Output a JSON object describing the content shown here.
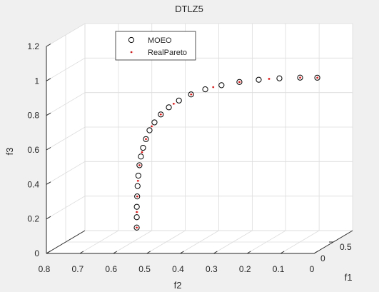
{
  "chart_data": {
    "type": "scatter",
    "dimensions": 3,
    "title": "DTLZ5",
    "xlabel": "f1",
    "ylabel": "f2",
    "zlabel": "f3",
    "xlim": [
      0,
      1
    ],
    "ylim": [
      0,
      0.8
    ],
    "zlim": [
      0,
      1.2
    ],
    "x_ticks": [
      "0",
      "0.5"
    ],
    "y_ticks": [
      "0.8",
      "0.7",
      "0.6",
      "0.5",
      "0.4",
      "0.3",
      "0.2",
      "0.1",
      "0"
    ],
    "z_ticks": [
      "0",
      "0.2",
      "0.4",
      "0.6",
      "0.8",
      "1",
      "1.2"
    ],
    "grid": true,
    "legend_position": "top-left",
    "series": [
      {
        "name": "MOEO",
        "marker": "open-circle",
        "color": "#000000",
        "points": [
          [
            0.0,
            0.53,
            0.15
          ],
          [
            0.001,
            0.53,
            0.21
          ],
          [
            0.002,
            0.53,
            0.27
          ],
          [
            0.003,
            0.529,
            0.33
          ],
          [
            0.005,
            0.528,
            0.39
          ],
          [
            0.007,
            0.526,
            0.45
          ],
          [
            0.01,
            0.523,
            0.51
          ],
          [
            0.013,
            0.519,
            0.56
          ],
          [
            0.017,
            0.513,
            0.61
          ],
          [
            0.022,
            0.505,
            0.66
          ],
          [
            0.028,
            0.495,
            0.71
          ],
          [
            0.035,
            0.481,
            0.755
          ],
          [
            0.043,
            0.463,
            0.8
          ],
          [
            0.052,
            0.44,
            0.84
          ],
          [
            0.062,
            0.411,
            0.878
          ],
          [
            0.073,
            0.376,
            0.912
          ],
          [
            0.085,
            0.335,
            0.94
          ],
          [
            0.098,
            0.288,
            0.962
          ],
          [
            0.112,
            0.236,
            0.979
          ],
          [
            0.127,
            0.18,
            0.99
          ],
          [
            0.143,
            0.12,
            0.996
          ],
          [
            0.159,
            0.06,
            0.998
          ],
          [
            0.171,
            0.01,
            0.996
          ]
        ]
      },
      {
        "name": "RealPareto",
        "marker": "point",
        "color": "#ff0000",
        "points": [
          [
            0.0,
            0.53,
            0.15
          ],
          [
            0.001,
            0.53,
            0.24
          ],
          [
            0.003,
            0.529,
            0.33
          ],
          [
            0.006,
            0.527,
            0.42
          ],
          [
            0.01,
            0.523,
            0.51
          ],
          [
            0.015,
            0.516,
            0.585
          ],
          [
            0.022,
            0.505,
            0.66
          ],
          [
            0.031,
            0.489,
            0.733
          ],
          [
            0.043,
            0.463,
            0.8
          ],
          [
            0.057,
            0.426,
            0.86
          ],
          [
            0.073,
            0.376,
            0.912
          ],
          [
            0.091,
            0.312,
            0.952
          ],
          [
            0.112,
            0.236,
            0.979
          ],
          [
            0.135,
            0.15,
            0.994
          ],
          [
            0.159,
            0.06,
            0.998
          ],
          [
            0.171,
            0.01,
            0.996
          ]
        ]
      }
    ]
  }
}
